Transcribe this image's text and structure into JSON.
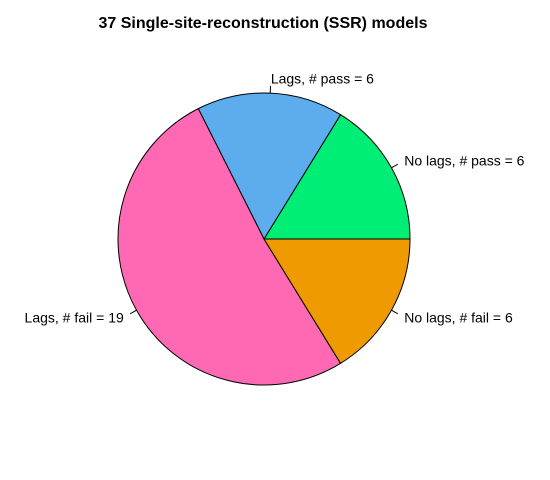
{
  "chart_data": {
    "type": "pie",
    "title": "37 Single-site-reconstruction (SSR) models",
    "slices": [
      {
        "label": "No lags, # pass = 6",
        "value": 6,
        "color": "#00EE76"
      },
      {
        "label": "Lags, # pass = 6",
        "value": 6,
        "color": "#5CACEE"
      },
      {
        "label": "Lags, # fail = 19",
        "value": 19,
        "color": "#FF69B4"
      },
      {
        "label": "No lags, # fail = 6",
        "value": 6,
        "color": "#EE9A00"
      }
    ]
  }
}
